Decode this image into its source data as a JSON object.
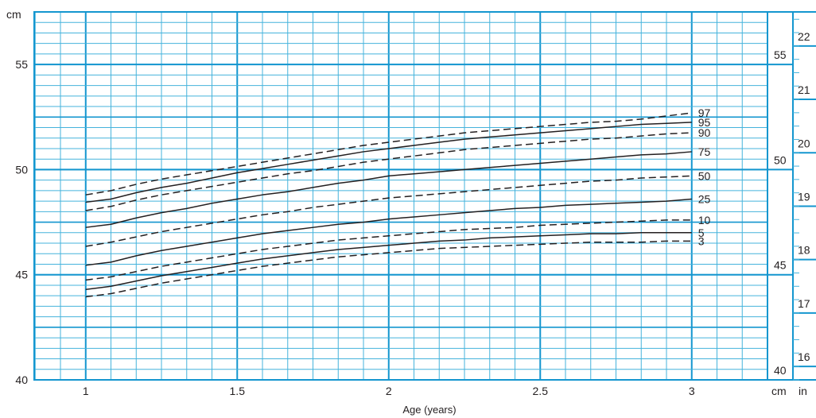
{
  "chart_data": {
    "type": "line",
    "title": "",
    "xlabel": "Age (years)",
    "ylabel": "cm",
    "x_ticks": [
      1,
      1.5,
      2,
      2.5,
      3
    ],
    "x_tick_labels": [
      "1",
      "1.5",
      "2",
      "2.5",
      "3"
    ],
    "xlim": [
      0.83,
      3.25
    ],
    "ylim": [
      40,
      57.5
    ],
    "y_ticks": [
      40,
      45,
      50,
      55
    ],
    "y_tick_labels": [
      "40",
      "45",
      "50",
      "55"
    ],
    "right_cm_ticks": [
      40,
      45,
      50,
      55
    ],
    "right_cm_tick_labels": [
      "40",
      "45",
      "50",
      "55"
    ],
    "right_in_ticks": [
      16,
      17,
      18,
      19,
      20,
      21,
      22
    ],
    "right_in_tick_labels": [
      "16",
      "17",
      "18",
      "19",
      "20",
      "21",
      "22"
    ],
    "unit_labels": {
      "left_top": "cm",
      "right_cm": "cm",
      "right_in": "in"
    },
    "grid": true,
    "colors": {
      "grid": "#45b3dc",
      "grid_major": "#1496cf",
      "curve": "#231f20"
    },
    "x": [
      1,
      1.0833,
      1.1667,
      1.25,
      1.3333,
      1.4167,
      1.5,
      1.5833,
      1.6667,
      1.75,
      1.8333,
      1.9167,
      2,
      2.0833,
      2.1667,
      2.25,
      2.3333,
      2.4167,
      2.5,
      2.5833,
      2.6667,
      2.75,
      2.8333,
      2.9167,
      3
    ],
    "series": [
      {
        "name": "97",
        "dashed": true,
        "values": [
          48.8,
          49.0,
          49.3,
          49.55,
          49.75,
          49.95,
          50.15,
          50.35,
          50.55,
          50.75,
          50.95,
          51.15,
          51.3,
          51.45,
          51.6,
          51.75,
          51.85,
          51.95,
          52.05,
          52.15,
          52.25,
          52.3,
          52.4,
          52.55,
          52.7
        ]
      },
      {
        "name": "95",
        "dashed": false,
        "values": [
          48.45,
          48.6,
          48.9,
          49.15,
          49.35,
          49.6,
          49.85,
          50.05,
          50.25,
          50.45,
          50.65,
          50.85,
          51.0,
          51.15,
          51.3,
          51.45,
          51.55,
          51.65,
          51.75,
          51.85,
          51.95,
          52.05,
          52.15,
          52.2,
          52.25
        ]
      },
      {
        "name": "90",
        "dashed": true,
        "values": [
          48.05,
          48.25,
          48.55,
          48.8,
          49.0,
          49.2,
          49.4,
          49.6,
          49.8,
          49.95,
          50.15,
          50.35,
          50.5,
          50.65,
          50.8,
          50.95,
          51.05,
          51.15,
          51.25,
          51.35,
          51.45,
          51.5,
          51.6,
          51.7,
          51.75
        ]
      },
      {
        "name": "75",
        "dashed": false,
        "values": [
          47.25,
          47.4,
          47.7,
          47.95,
          48.15,
          48.4,
          48.6,
          48.8,
          48.95,
          49.15,
          49.35,
          49.5,
          49.7,
          49.8,
          49.9,
          50.0,
          50.1,
          50.2,
          50.3,
          50.4,
          50.5,
          50.6,
          50.7,
          50.75,
          50.85
        ]
      },
      {
        "name": "50",
        "dashed": true,
        "values": [
          46.35,
          46.55,
          46.8,
          47.05,
          47.25,
          47.45,
          47.65,
          47.85,
          48.0,
          48.2,
          48.35,
          48.5,
          48.65,
          48.75,
          48.85,
          48.95,
          49.05,
          49.15,
          49.25,
          49.35,
          49.45,
          49.5,
          49.6,
          49.65,
          49.7
        ]
      },
      {
        "name": "25",
        "dashed": false,
        "values": [
          45.45,
          45.6,
          45.9,
          46.15,
          46.35,
          46.55,
          46.75,
          46.95,
          47.1,
          47.25,
          47.4,
          47.5,
          47.65,
          47.75,
          47.85,
          47.95,
          48.05,
          48.15,
          48.2,
          48.3,
          48.35,
          48.4,
          48.45,
          48.5,
          48.6
        ]
      },
      {
        "name": "10",
        "dashed": true,
        "values": [
          44.75,
          44.9,
          45.15,
          45.4,
          45.6,
          45.8,
          46.0,
          46.2,
          46.35,
          46.5,
          46.65,
          46.75,
          46.85,
          46.95,
          47.05,
          47.15,
          47.2,
          47.25,
          47.35,
          47.4,
          47.45,
          47.5,
          47.55,
          47.6,
          47.6
        ]
      },
      {
        "name": "5",
        "dashed": false,
        "values": [
          44.3,
          44.45,
          44.7,
          44.95,
          45.15,
          45.35,
          45.55,
          45.75,
          45.9,
          46.05,
          46.2,
          46.3,
          46.4,
          46.5,
          46.6,
          46.65,
          46.75,
          46.8,
          46.85,
          46.9,
          46.95,
          46.95,
          47.0,
          47.0,
          47.0
        ]
      },
      {
        "name": "3",
        "dashed": true,
        "values": [
          43.95,
          44.1,
          44.35,
          44.6,
          44.8,
          45.0,
          45.2,
          45.4,
          45.55,
          45.7,
          45.85,
          45.95,
          46.05,
          46.15,
          46.25,
          46.3,
          46.35,
          46.4,
          46.45,
          46.5,
          46.55,
          46.55,
          46.55,
          46.6,
          46.6
        ]
      }
    ]
  }
}
